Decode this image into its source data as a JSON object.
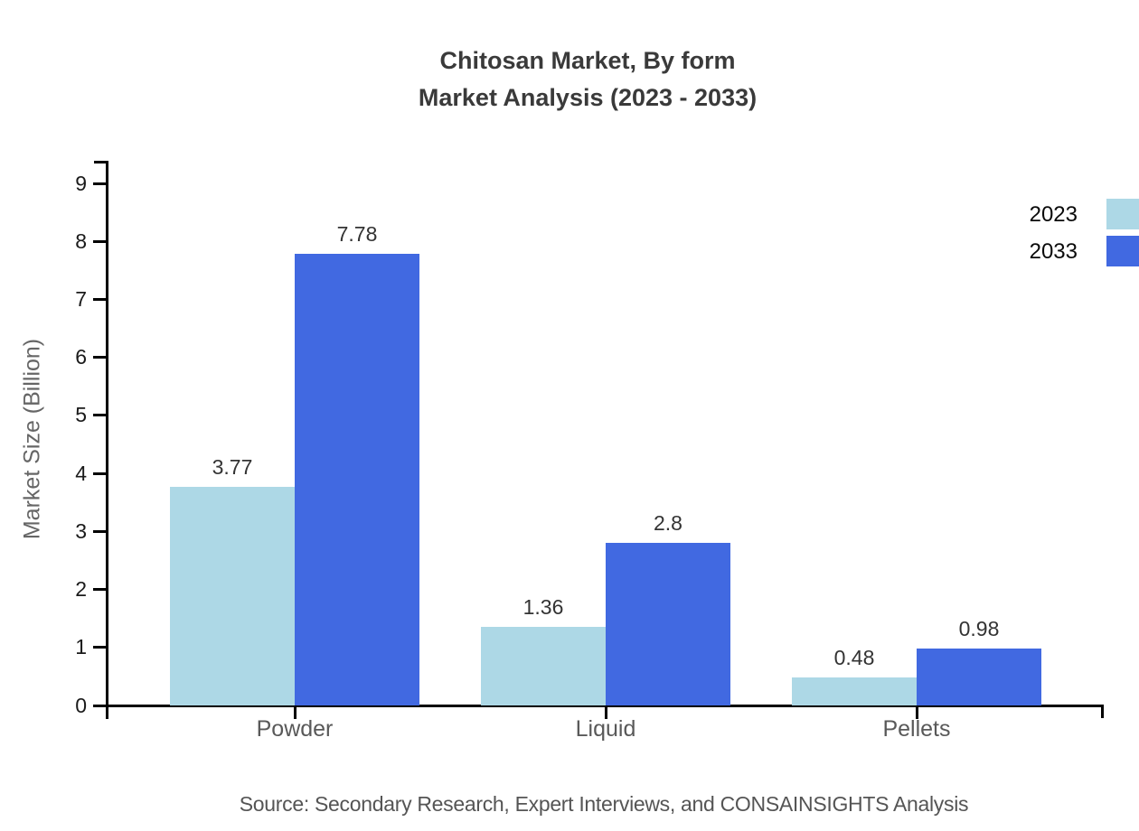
{
  "title": {
    "line1": "Chitosan Market, By form",
    "line2": "Market Analysis (2023 - 2033)"
  },
  "source_note": "Source: Secondary Research, Expert Interviews, and CONSAINSIGHTS Analysis",
  "chart_data": {
    "type": "bar",
    "title": "Chitosan Market, By form\nMarket Analysis (2023 - 2033)",
    "categories": [
      "Powder",
      "Liquid",
      "Pellets"
    ],
    "series": [
      {
        "name": "2023",
        "color": "#ADD8E6",
        "values": [
          3.77,
          1.36,
          0.48
        ]
      },
      {
        "name": "2033",
        "color": "#4169E1",
        "values": [
          7.78,
          2.8,
          0.98
        ]
      }
    ],
    "xlabel": "",
    "ylabel": "Market Size (Billion)",
    "ylim": [
      0,
      9
    ],
    "yticks": [
      0,
      1,
      2,
      3,
      4,
      5,
      6,
      7,
      8,
      9
    ],
    "grid": false,
    "legend_position": "top-right",
    "bar_value_labels": true
  }
}
